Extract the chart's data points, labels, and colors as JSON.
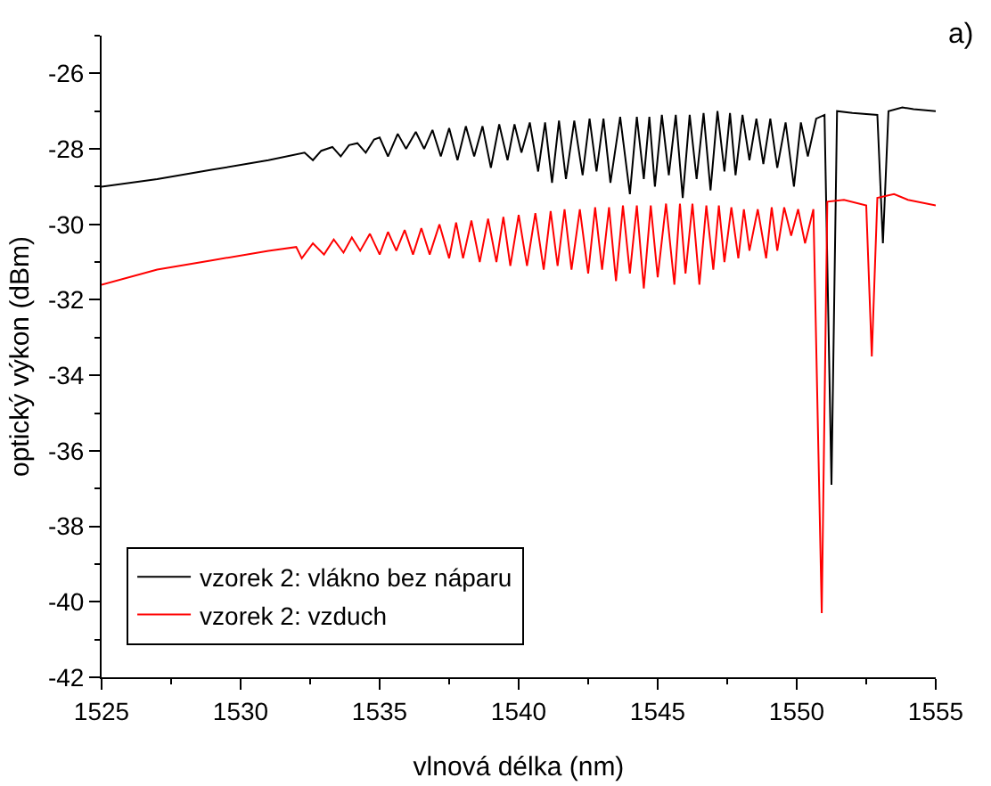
{
  "chart_data": {
    "type": "line",
    "xlabel": "vlnová délka (nm)",
    "ylabel": "optický výkon (dBm)",
    "annotations": [
      "a)"
    ],
    "xlim": [
      1525,
      1555
    ],
    "xticks": [
      1525,
      1530,
      1535,
      1540,
      1545,
      1550,
      1555
    ],
    "ylim": [
      -42,
      -25
    ],
    "yticks": [
      -42,
      -40,
      -38,
      -36,
      -34,
      -32,
      -30,
      -28,
      -26
    ],
    "grid": false,
    "legend": "bottom left",
    "marker": "none",
    "line_style": "solid",
    "series": [
      {
        "name": "vzorek 2: vlákno bez náparu",
        "color": "#000000",
        "x": [
          1525,
          1527,
          1529,
          1531,
          1532.3,
          1532.6,
          1532.9,
          1533.3,
          1533.6,
          1533.9,
          1534.2,
          1534.5,
          1534.8,
          1535.0,
          1535.3,
          1535.65,
          1535.95,
          1536.3,
          1536.6,
          1536.9,
          1537.2,
          1537.5,
          1537.8,
          1538.1,
          1538.4,
          1538.7,
          1539.0,
          1539.3,
          1539.6,
          1539.85,
          1540.1,
          1540.4,
          1540.7,
          1540.95,
          1541.2,
          1541.45,
          1541.7,
          1542.0,
          1542.3,
          1542.55,
          1542.8,
          1543.05,
          1543.3,
          1543.65,
          1544.0,
          1544.25,
          1544.5,
          1544.7,
          1544.9,
          1545.15,
          1545.4,
          1545.65,
          1545.9,
          1546.15,
          1546.4,
          1546.65,
          1546.9,
          1547.15,
          1547.4,
          1547.6,
          1547.8,
          1548.05,
          1548.3,
          1548.55,
          1548.8,
          1549.05,
          1549.3,
          1549.6,
          1549.9,
          1550.15,
          1550.4,
          1550.7,
          1551.0,
          1551.25,
          1551.45,
          1552,
          1552.9,
          1553.1,
          1553.3,
          1553.8,
          1554.2,
          1555
        ],
        "values": [
          -29.0,
          -28.8,
          -28.55,
          -28.3,
          -28.1,
          -28.3,
          -28.05,
          -27.95,
          -28.2,
          -27.9,
          -27.85,
          -28.1,
          -27.75,
          -27.7,
          -28.2,
          -27.6,
          -28.0,
          -27.55,
          -28.0,
          -27.5,
          -28.2,
          -27.45,
          -28.3,
          -27.4,
          -28.2,
          -27.4,
          -28.5,
          -27.35,
          -28.3,
          -27.35,
          -28.1,
          -27.3,
          -28.6,
          -27.3,
          -28.9,
          -27.25,
          -28.8,
          -27.25,
          -28.7,
          -27.2,
          -28.6,
          -27.2,
          -28.9,
          -27.15,
          -29.2,
          -27.15,
          -28.8,
          -27.15,
          -29.0,
          -27.1,
          -28.7,
          -27.1,
          -29.3,
          -27.1,
          -28.8,
          -27.05,
          -29.1,
          -27.0,
          -28.6,
          -27.05,
          -28.7,
          -27.1,
          -28.3,
          -27.2,
          -28.4,
          -27.2,
          -28.5,
          -27.3,
          -29.0,
          -27.3,
          -28.2,
          -27.2,
          -27.1,
          -36.9,
          -27.0,
          -27.05,
          -27.1,
          -30.5,
          -27.0,
          -26.9,
          -26.95,
          -27.0
        ]
      },
      {
        "name": "vzorek 2: vzduch",
        "color": "#ff0000",
        "x": [
          1525,
          1527,
          1529,
          1531,
          1532.0,
          1532.2,
          1532.6,
          1533.0,
          1533.35,
          1533.7,
          1534.0,
          1534.3,
          1534.65,
          1535.0,
          1535.3,
          1535.6,
          1535.9,
          1536.2,
          1536.5,
          1536.8,
          1537.15,
          1537.5,
          1537.75,
          1538.0,
          1538.3,
          1538.6,
          1538.9,
          1539.2,
          1539.45,
          1539.7,
          1540.0,
          1540.3,
          1540.6,
          1540.9,
          1541.15,
          1541.4,
          1541.65,
          1541.9,
          1542.2,
          1542.5,
          1542.75,
          1543.0,
          1543.25,
          1543.5,
          1543.75,
          1544.0,
          1544.25,
          1544.5,
          1544.75,
          1545.0,
          1545.3,
          1545.6,
          1545.8,
          1546.0,
          1546.25,
          1546.5,
          1546.75,
          1547.0,
          1547.2,
          1547.4,
          1547.65,
          1547.9,
          1548.1,
          1548.3,
          1548.6,
          1548.9,
          1549.1,
          1549.3,
          1549.55,
          1549.8,
          1550.05,
          1550.3,
          1550.6,
          1550.9,
          1551.1,
          1551.7,
          1552.5,
          1552.7,
          1552.9,
          1553.5,
          1554,
          1555
        ],
        "values": [
          -31.6,
          -31.2,
          -30.95,
          -30.7,
          -30.6,
          -30.9,
          -30.5,
          -30.8,
          -30.4,
          -30.75,
          -30.35,
          -30.7,
          -30.25,
          -30.8,
          -30.2,
          -30.7,
          -30.15,
          -30.8,
          -30.1,
          -30.8,
          -30.0,
          -30.9,
          -29.95,
          -30.9,
          -29.9,
          -31.0,
          -29.85,
          -31.0,
          -29.8,
          -31.1,
          -29.75,
          -31.1,
          -29.7,
          -31.2,
          -29.65,
          -31.1,
          -29.6,
          -31.2,
          -29.6,
          -31.3,
          -29.55,
          -31.2,
          -29.55,
          -31.5,
          -29.5,
          -31.3,
          -29.5,
          -31.7,
          -29.5,
          -31.4,
          -29.45,
          -31.6,
          -29.45,
          -31.3,
          -29.45,
          -31.6,
          -29.5,
          -31.2,
          -29.5,
          -31.0,
          -29.55,
          -30.9,
          -29.6,
          -30.7,
          -29.6,
          -30.9,
          -29.55,
          -30.7,
          -29.55,
          -30.3,
          -29.6,
          -30.5,
          -29.6,
          -40.3,
          -29.4,
          -29.35,
          -29.5,
          -33.5,
          -29.3,
          -29.2,
          -29.35,
          -29.5
        ]
      }
    ]
  }
}
